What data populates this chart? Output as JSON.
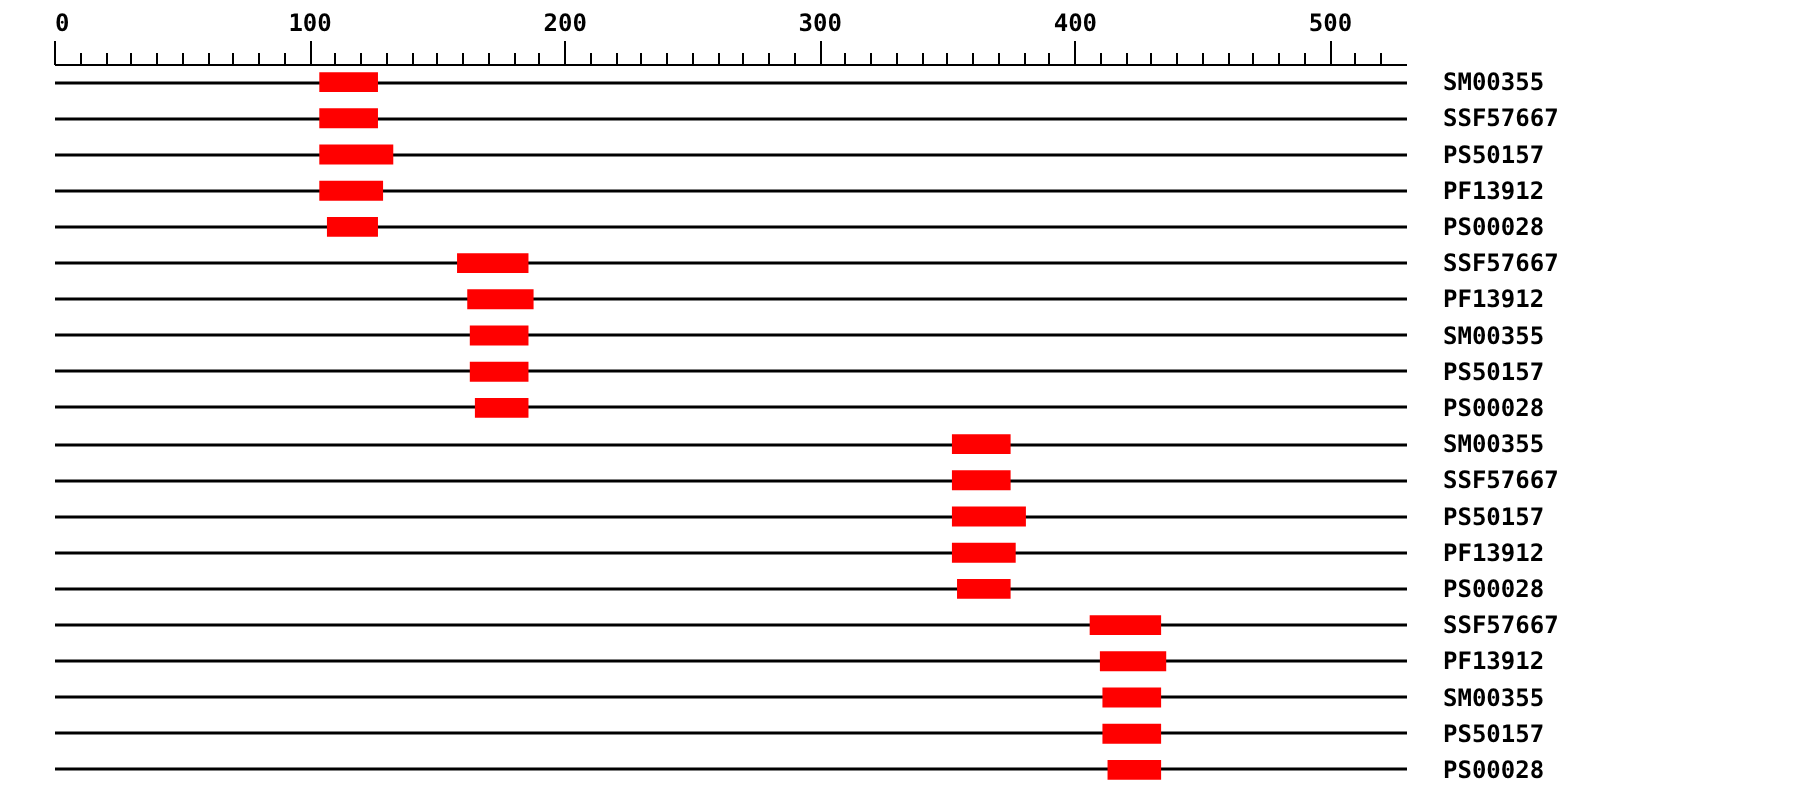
{
  "chart_data": {
    "type": "bar",
    "orientation": "horizontal",
    "categories": [
      "SM00355",
      "SSF57667",
      "PS50157",
      "PF13912",
      "PS00028",
      "SSF57667",
      "PF13912",
      "SM00355",
      "PS50157",
      "PS00028",
      "SM00355",
      "SSF57667",
      "PS50157",
      "PF13912",
      "PS00028",
      "SSF57667",
      "PF13912",
      "SM00355",
      "PS50157",
      "PS00028"
    ],
    "base": [
      104,
      104,
      104,
      104,
      107,
      158,
      162,
      163,
      163,
      165,
      352,
      352,
      352,
      352,
      354,
      406,
      410,
      411,
      411,
      413
    ],
    "values": [
      23,
      23,
      29,
      25,
      20,
      28,
      26,
      23,
      23,
      21,
      23,
      23,
      29,
      25,
      21,
      28,
      26,
      23,
      23,
      21
    ],
    "color": "#ff0000",
    "xlim": [
      0,
      530
    ],
    "xticks": [
      0,
      {
        "value": 10,
        "label": null
      },
      {
        "value": 20,
        "label": null
      },
      {
        "value": 30,
        "label": null
      },
      {
        "value": 40,
        "label": null
      },
      {
        "value": 50,
        "label": null
      },
      {
        "value": 60,
        "label": null
      },
      {
        "value": 70,
        "label": null
      },
      {
        "value": 80,
        "label": null
      },
      {
        "value": 90,
        "label": null
      },
      100,
      {
        "value": 110,
        "label": null
      },
      {
        "value": 120,
        "label": null
      },
      {
        "value": 130,
        "label": null
      },
      {
        "value": 140,
        "label": null
      },
      {
        "value": 150,
        "label": null
      },
      {
        "value": 160,
        "label": null
      },
      {
        "value": 170,
        "label": null
      },
      {
        "value": 180,
        "label": null
      },
      {
        "value": 190,
        "label": null
      },
      200,
      {
        "value": 210,
        "label": null
      },
      {
        "value": 220,
        "label": null
      },
      {
        "value": 230,
        "label": null
      },
      {
        "value": 240,
        "label": null
      },
      {
        "value": 250,
        "label": null
      },
      {
        "value": 260,
        "label": null
      },
      {
        "value": 270,
        "label": null
      },
      {
        "value": 280,
        "label": null
      },
      {
        "value": 290,
        "label": null
      },
      300,
      {
        "value": 310,
        "label": null
      },
      {
        "value": 320,
        "label": null
      },
      {
        "value": 330,
        "label": null
      },
      {
        "value": 340,
        "label": null
      },
      {
        "value": 350,
        "label": null
      },
      {
        "value": 360,
        "label": null
      },
      {
        "value": 370,
        "label": null
      },
      {
        "value": 380,
        "label": null
      },
      {
        "value": 390,
        "label": null
      },
      400,
      {
        "value": 410,
        "label": null
      },
      {
        "value": 420,
        "label": null
      },
      {
        "value": 430,
        "label": null
      },
      {
        "value": 440,
        "label": null
      },
      {
        "value": 450,
        "label": null
      },
      {
        "value": 460,
        "label": null
      },
      {
        "value": 470,
        "label": null
      },
      {
        "value": 480,
        "label": null
      },
      {
        "value": 490,
        "label": null
      },
      500,
      {
        "value": 510,
        "label": null
      },
      {
        "value": 520,
        "label": null
      }
    ],
    "grid": "y"
  }
}
